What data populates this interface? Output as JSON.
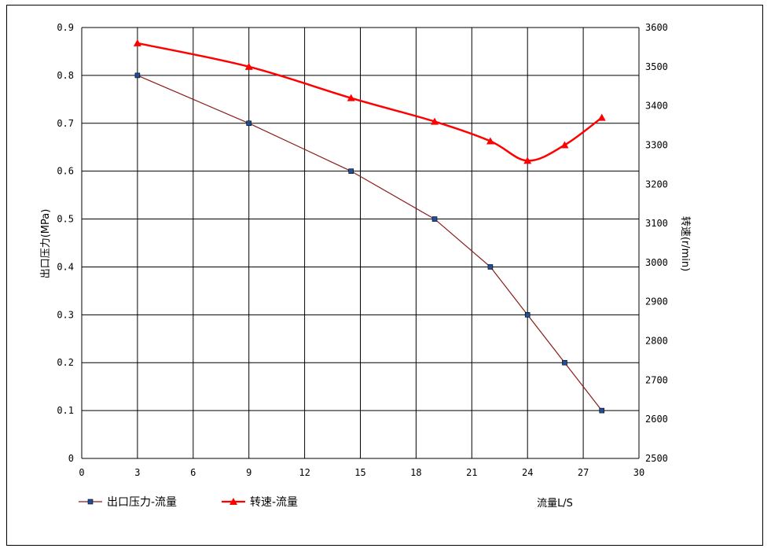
{
  "chart_data": {
    "type": "line",
    "title": "",
    "xlabel": "流量L/S",
    "ylabel": "出口压力(MPa)",
    "y2label": "转速(r/min)",
    "xlim": [
      0,
      30
    ],
    "ylim": [
      0,
      0.9
    ],
    "y2lim": [
      2500,
      3600
    ],
    "x_ticks": [
      0,
      3,
      6,
      9,
      12,
      15,
      18,
      21,
      24,
      27,
      30
    ],
    "y_ticks": [
      0,
      0.1,
      0.2,
      0.3,
      0.4,
      0.5,
      0.6,
      0.7,
      0.8,
      0.9
    ],
    "y2_ticks": [
      2500,
      2600,
      2700,
      2800,
      2900,
      3000,
      3100,
      3200,
      3300,
      3400,
      3500,
      3600
    ],
    "grid": true,
    "legend_position": "bottom-left",
    "series": [
      {
        "name": "出口压力-流量",
        "axis": "left",
        "color": "#8B1A1A",
        "marker_color": "#1F4E9A",
        "marker": "square",
        "x": [
          3,
          9,
          14.5,
          19,
          22,
          24,
          26,
          28
        ],
        "y": [
          0.8,
          0.7,
          0.6,
          0.5,
          0.4,
          0.3,
          0.2,
          0.1
        ]
      },
      {
        "name": "转速-流量",
        "axis": "right",
        "color": "#FF0000",
        "marker_color": "#FF0000",
        "marker": "triangle",
        "x": [
          3,
          9,
          14.5,
          19,
          22,
          24,
          26,
          28
        ],
        "y": [
          3560,
          3500,
          3420,
          3360,
          3310,
          3260,
          3300,
          3370
        ]
      }
    ]
  }
}
